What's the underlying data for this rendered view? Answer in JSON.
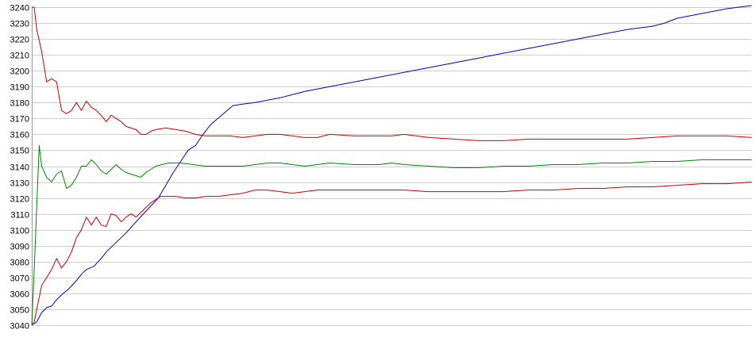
{
  "chart_data": {
    "type": "line",
    "title": "",
    "xlabel": "",
    "ylabel": "",
    "ylim": [
      3040,
      3240
    ],
    "xlim": [
      0,
      290
    ],
    "grid": true,
    "legend": "none",
    "y_ticks": [
      3040,
      3050,
      3060,
      3070,
      3080,
      3090,
      3100,
      3110,
      3120,
      3130,
      3140,
      3150,
      3160,
      3170,
      3180,
      3190,
      3200,
      3210,
      3220,
      3230,
      3240
    ],
    "series": [
      {
        "color": "#0000cc",
        "points": [
          [
            0,
            3040
          ],
          [
            2,
            3042
          ],
          [
            4,
            3048
          ],
          [
            6,
            3051
          ],
          [
            8,
            3052
          ],
          [
            10,
            3056
          ],
          [
            12,
            3059
          ],
          [
            15,
            3063
          ],
          [
            18,
            3068
          ],
          [
            20,
            3072
          ],
          [
            22,
            3075
          ],
          [
            25,
            3077
          ],
          [
            28,
            3082
          ],
          [
            30,
            3086
          ],
          [
            34,
            3092
          ],
          [
            38,
            3098
          ],
          [
            42,
            3105
          ],
          [
            45,
            3110
          ],
          [
            48,
            3115
          ],
          [
            51,
            3120
          ],
          [
            54,
            3128
          ],
          [
            57,
            3136
          ],
          [
            60,
            3143
          ],
          [
            63,
            3150
          ],
          [
            66,
            3153
          ],
          [
            69,
            3160
          ],
          [
            72,
            3166
          ],
          [
            75,
            3170
          ],
          [
            78,
            3174
          ],
          [
            81,
            3178
          ],
          [
            85,
            3179
          ],
          [
            90,
            3180
          ],
          [
            100,
            3183
          ],
          [
            110,
            3187
          ],
          [
            120,
            3190
          ],
          [
            130,
            3193
          ],
          [
            140,
            3196
          ],
          [
            150,
            3199
          ],
          [
            160,
            3202
          ],
          [
            170,
            3205
          ],
          [
            180,
            3208
          ],
          [
            190,
            3211
          ],
          [
            200,
            3214
          ],
          [
            210,
            3217
          ],
          [
            220,
            3220
          ],
          [
            230,
            3223
          ],
          [
            240,
            3226
          ],
          [
            250,
            3228
          ],
          [
            255,
            3230
          ],
          [
            260,
            3233
          ],
          [
            270,
            3236
          ],
          [
            280,
            3239
          ],
          [
            290,
            3241
          ]
        ]
      },
      {
        "color": "#cc0000",
        "points": [
          [
            0,
            3240
          ],
          [
            1,
            3240
          ],
          [
            2,
            3226
          ],
          [
            4,
            3212
          ],
          [
            6,
            3193
          ],
          [
            8,
            3195
          ],
          [
            10,
            3193
          ],
          [
            12,
            3175
          ],
          [
            14,
            3173
          ],
          [
            16,
            3175
          ],
          [
            18,
            3180
          ],
          [
            20,
            3175
          ],
          [
            22,
            3181
          ],
          [
            24,
            3177
          ],
          [
            26,
            3175
          ],
          [
            28,
            3172
          ],
          [
            30,
            3168
          ],
          [
            32,
            3172
          ],
          [
            34,
            3170
          ],
          [
            36,
            3168
          ],
          [
            38,
            3165
          ],
          [
            40,
            3164
          ],
          [
            42,
            3163
          ],
          [
            44,
            3160
          ],
          [
            46,
            3160
          ],
          [
            48,
            3162
          ],
          [
            50,
            3163
          ],
          [
            54,
            3164
          ],
          [
            58,
            3163
          ],
          [
            62,
            3162
          ],
          [
            66,
            3160
          ],
          [
            70,
            3159
          ],
          [
            75,
            3159
          ],
          [
            80,
            3159
          ],
          [
            85,
            3158
          ],
          [
            90,
            3159
          ],
          [
            95,
            3160
          ],
          [
            100,
            3160
          ],
          [
            105,
            3159
          ],
          [
            110,
            3158
          ],
          [
            115,
            3158
          ],
          [
            120,
            3160
          ],
          [
            130,
            3159
          ],
          [
            140,
            3159
          ],
          [
            145,
            3159
          ],
          [
            150,
            3160
          ],
          [
            160,
            3158
          ],
          [
            170,
            3157
          ],
          [
            180,
            3156
          ],
          [
            190,
            3156
          ],
          [
            200,
            3157
          ],
          [
            210,
            3157
          ],
          [
            220,
            3157
          ],
          [
            230,
            3157
          ],
          [
            240,
            3157
          ],
          [
            250,
            3158
          ],
          [
            260,
            3159
          ],
          [
            270,
            3159
          ],
          [
            280,
            3159
          ],
          [
            290,
            3158
          ]
        ]
      },
      {
        "color": "#008800",
        "points": [
          [
            0,
            3040
          ],
          [
            1,
            3075
          ],
          [
            2,
            3115
          ],
          [
            3,
            3153
          ],
          [
            4,
            3140
          ],
          [
            6,
            3133
          ],
          [
            8,
            3130
          ],
          [
            10,
            3135
          ],
          [
            12,
            3137
          ],
          [
            14,
            3126
          ],
          [
            16,
            3128
          ],
          [
            18,
            3133
          ],
          [
            20,
            3140
          ],
          [
            22,
            3140
          ],
          [
            24,
            3144
          ],
          [
            26,
            3141
          ],
          [
            28,
            3137
          ],
          [
            30,
            3135
          ],
          [
            32,
            3138
          ],
          [
            34,
            3141
          ],
          [
            36,
            3138
          ],
          [
            38,
            3136
          ],
          [
            40,
            3135
          ],
          [
            42,
            3134
          ],
          [
            44,
            3133
          ],
          [
            46,
            3136
          ],
          [
            48,
            3138
          ],
          [
            50,
            3140
          ],
          [
            55,
            3142
          ],
          [
            60,
            3142
          ],
          [
            65,
            3141
          ],
          [
            70,
            3140
          ],
          [
            75,
            3140
          ],
          [
            80,
            3140
          ],
          [
            85,
            3140
          ],
          [
            90,
            3141
          ],
          [
            95,
            3142
          ],
          [
            100,
            3142
          ],
          [
            105,
            3141
          ],
          [
            110,
            3140
          ],
          [
            115,
            3141
          ],
          [
            120,
            3142
          ],
          [
            130,
            3141
          ],
          [
            140,
            3141
          ],
          [
            145,
            3142
          ],
          [
            150,
            3141
          ],
          [
            160,
            3140
          ],
          [
            170,
            3139
          ],
          [
            180,
            3139
          ],
          [
            190,
            3140
          ],
          [
            200,
            3140
          ],
          [
            210,
            3141
          ],
          [
            220,
            3141
          ],
          [
            230,
            3142
          ],
          [
            240,
            3142
          ],
          [
            250,
            3143
          ],
          [
            260,
            3143
          ],
          [
            270,
            3144
          ],
          [
            280,
            3144
          ],
          [
            290,
            3144
          ]
        ]
      },
      {
        "color": "#cc0000",
        "points": [
          [
            0,
            3040
          ],
          [
            1,
            3042
          ],
          [
            2,
            3050
          ],
          [
            4,
            3065
          ],
          [
            6,
            3070
          ],
          [
            8,
            3075
          ],
          [
            10,
            3082
          ],
          [
            12,
            3076
          ],
          [
            14,
            3080
          ],
          [
            16,
            3086
          ],
          [
            18,
            3095
          ],
          [
            20,
            3100
          ],
          [
            22,
            3108
          ],
          [
            24,
            3103
          ],
          [
            26,
            3108
          ],
          [
            28,
            3103
          ],
          [
            30,
            3102
          ],
          [
            32,
            3110
          ],
          [
            34,
            3109
          ],
          [
            36,
            3105
          ],
          [
            38,
            3108
          ],
          [
            40,
            3110
          ],
          [
            42,
            3108
          ],
          [
            44,
            3111
          ],
          [
            46,
            3114
          ],
          [
            48,
            3117
          ],
          [
            50,
            3119
          ],
          [
            52,
            3121
          ],
          [
            54,
            3121
          ],
          [
            58,
            3121
          ],
          [
            62,
            3120
          ],
          [
            66,
            3120
          ],
          [
            70,
            3121
          ],
          [
            75,
            3121
          ],
          [
            80,
            3122
          ],
          [
            85,
            3123
          ],
          [
            90,
            3125
          ],
          [
            95,
            3125
          ],
          [
            100,
            3124
          ],
          [
            105,
            3123
          ],
          [
            110,
            3124
          ],
          [
            115,
            3125
          ],
          [
            120,
            3125
          ],
          [
            130,
            3125
          ],
          [
            140,
            3125
          ],
          [
            145,
            3125
          ],
          [
            150,
            3125
          ],
          [
            160,
            3124
          ],
          [
            170,
            3124
          ],
          [
            180,
            3124
          ],
          [
            190,
            3124
          ],
          [
            200,
            3125
          ],
          [
            210,
            3125
          ],
          [
            220,
            3126
          ],
          [
            230,
            3126
          ],
          [
            240,
            3127
          ],
          [
            250,
            3127
          ],
          [
            260,
            3128
          ],
          [
            270,
            3129
          ],
          [
            280,
            3129
          ],
          [
            290,
            3130
          ]
        ]
      }
    ]
  }
}
